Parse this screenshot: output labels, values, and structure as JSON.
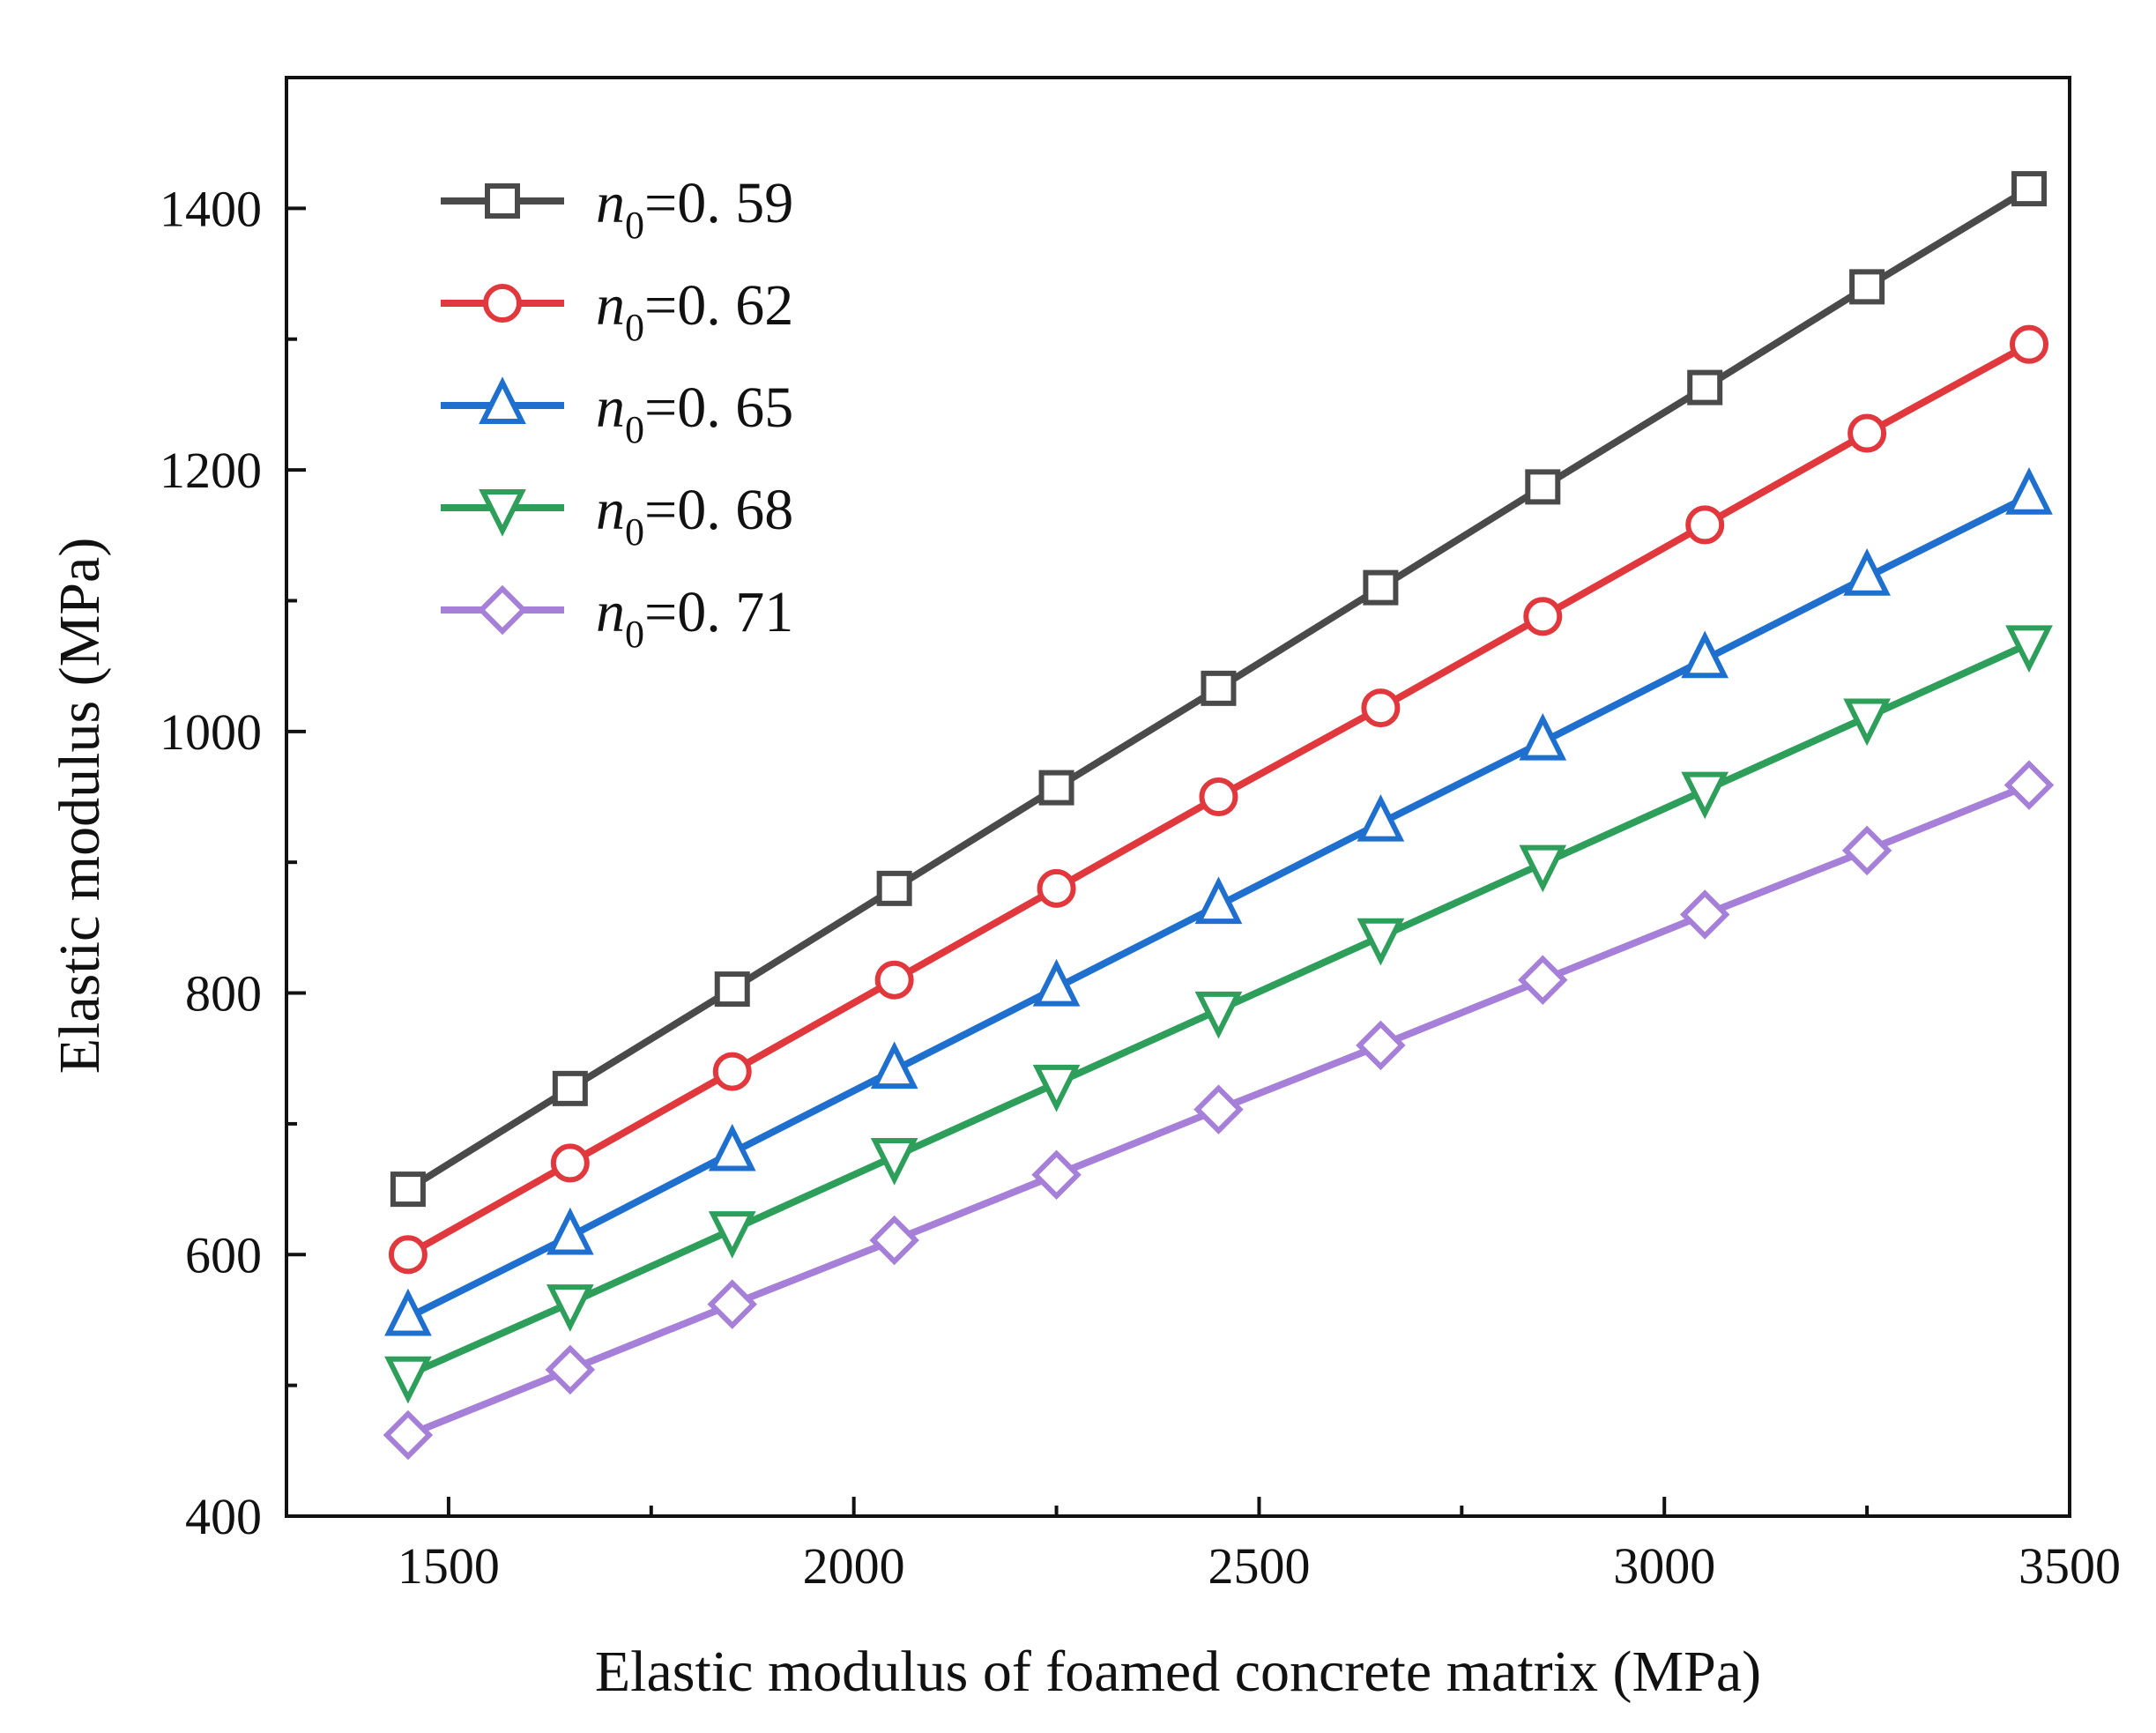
{
  "chart_data": {
    "type": "line",
    "title": "",
    "xlabel": "Elastic modulus of foamed concrete matrix (MPa)",
    "ylabel": "Elastic modulus (MPa)",
    "xlim": [
      1300,
      3500
    ],
    "ylim": [
      400,
      1500
    ],
    "x_ticks": [
      1500,
      2000,
      2500,
      3000,
      3500
    ],
    "x_tick_labels": [
      "1500",
      "2000",
      "2500",
      "3000",
      "3500"
    ],
    "y_ticks": [
      400,
      600,
      800,
      1000,
      1200,
      1400
    ],
    "y_tick_labels": [
      "400",
      "600",
      "800",
      "1000",
      "1200",
      "1400"
    ],
    "grid": false,
    "legend_position": "top-left",
    "x": [
      1450,
      1650,
      1850,
      2050,
      2250,
      2450,
      2650,
      2850,
      3050,
      3250,
      3450
    ],
    "series": [
      {
        "name": "n0=0. 59",
        "symbol": "n",
        "subscript": "0",
        "value_text": "=0. 59",
        "marker": "square",
        "color": "#4a4a4a",
        "values": [
          650,
          727,
          803,
          880,
          957,
          1033,
          1110,
          1187,
          1263,
          1340,
          1415
        ]
      },
      {
        "name": "n0=0. 62",
        "symbol": "n",
        "subscript": "0",
        "value_text": "=0. 62",
        "marker": "circle",
        "color": "#e0383d",
        "values": [
          600,
          670,
          740,
          810,
          880,
          950,
          1018,
          1088,
          1158,
          1228,
          1296
        ]
      },
      {
        "name": "n0=0. 65",
        "symbol": "n",
        "subscript": "0",
        "value_text": "=0. 65",
        "marker": "triangle-up",
        "color": "#1f6fcf",
        "values": [
          552,
          614,
          678,
          741,
          804,
          867,
          930,
          992,
          1055,
          1118,
          1180
        ]
      },
      {
        "name": "n0=0. 68",
        "symbol": "n",
        "subscript": "0",
        "value_text": "=0. 68",
        "marker": "triangle-down",
        "color": "#2e9e5b",
        "values": [
          508,
          563,
          619,
          675,
          731,
          787,
          843,
          899,
          955,
          1011,
          1067
        ]
      },
      {
        "name": "n0=0. 71",
        "symbol": "n",
        "subscript": "0",
        "value_text": "=0. 71",
        "marker": "diamond",
        "color": "#a57fd8",
        "values": [
          462,
          512,
          562,
          611,
          661,
          711,
          760,
          810,
          860,
          909,
          959
        ]
      }
    ]
  }
}
